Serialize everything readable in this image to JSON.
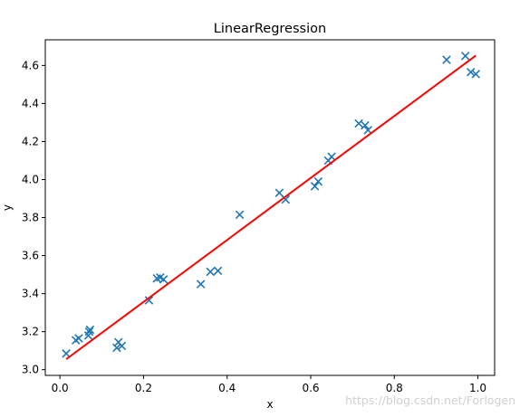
{
  "chart_data": {
    "type": "scatter",
    "title": "LinearRegression",
    "xlabel": "x",
    "ylabel": "y",
    "xlim": [
      -0.035,
      1.04
    ],
    "ylim": [
      2.97,
      4.735
    ],
    "xticks": [
      0.0,
      0.2,
      0.4,
      0.6,
      0.8,
      1.0
    ],
    "xtick_labels": [
      "0.0",
      "0.2",
      "0.4",
      "0.6",
      "0.8",
      "1.0"
    ],
    "yticks": [
      3.0,
      3.2,
      3.4,
      3.6,
      3.8,
      4.0,
      4.2,
      4.4,
      4.6
    ],
    "ytick_labels": [
      "3.0",
      "3.2",
      "3.4",
      "3.6",
      "3.8",
      "4.0",
      "4.2",
      "4.4",
      "4.6"
    ],
    "grid": false,
    "series": [
      {
        "type": "scatter",
        "marker": "x",
        "color": "#1f77b4",
        "points": [
          [
            0.015,
            3.085
          ],
          [
            0.038,
            3.155
          ],
          [
            0.045,
            3.165
          ],
          [
            0.068,
            3.18
          ],
          [
            0.07,
            3.2
          ],
          [
            0.072,
            3.21
          ],
          [
            0.136,
            3.115
          ],
          [
            0.14,
            3.145
          ],
          [
            0.148,
            3.125
          ],
          [
            0.213,
            3.365
          ],
          [
            0.232,
            3.48
          ],
          [
            0.24,
            3.485
          ],
          [
            0.248,
            3.475
          ],
          [
            0.337,
            3.45
          ],
          [
            0.36,
            3.515
          ],
          [
            0.378,
            3.52
          ],
          [
            0.43,
            3.815
          ],
          [
            0.525,
            3.93
          ],
          [
            0.54,
            3.895
          ],
          [
            0.61,
            3.965
          ],
          [
            0.618,
            3.99
          ],
          [
            0.642,
            4.1
          ],
          [
            0.65,
            4.12
          ],
          [
            0.715,
            4.295
          ],
          [
            0.73,
            4.285
          ],
          [
            0.737,
            4.26
          ],
          [
            0.925,
            4.63
          ],
          [
            0.97,
            4.65
          ],
          [
            0.983,
            4.565
          ],
          [
            0.995,
            4.555
          ]
        ]
      },
      {
        "type": "line",
        "color": "#ff0000",
        "x": [
          0.015,
          0.995
        ],
        "y": [
          3.055,
          4.652
        ]
      }
    ]
  },
  "watermark": "https://blog.csdn.net/Forlogen"
}
